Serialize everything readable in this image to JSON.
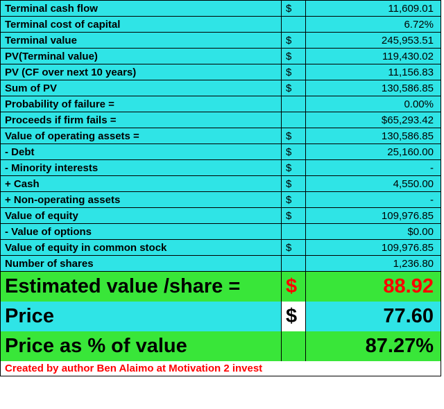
{
  "colors": {
    "cyan": "#2fe4e6",
    "green": "#39e639",
    "white": "#ffffff",
    "red": "#ff0000",
    "black": "#000000"
  },
  "rows": [
    {
      "label": "Terminal cash flow",
      "cur": "$",
      "val": "11,609.01",
      "bg": "cyan"
    },
    {
      "label": "Terminal cost of capital",
      "cur": "",
      "val": "6.72%",
      "bg": "cyan"
    },
    {
      "label": "Terminal value",
      "cur": "$",
      "val": "245,953.51",
      "bg": "cyan"
    },
    {
      "label": "PV(Terminal value)",
      "cur": "$",
      "val": "119,430.02",
      "bg": "cyan"
    },
    {
      "label": "PV (CF over next 10 years)",
      "cur": "$",
      "val": "11,156.83",
      "bg": "cyan"
    },
    {
      "label": "Sum of PV",
      "cur": "$",
      "val": "130,586.85",
      "bg": "cyan"
    },
    {
      "label": "Probability of failure =",
      "cur": "",
      "val": "0.00%",
      "bg": "cyan"
    },
    {
      "label": "Proceeds if firm fails =",
      "cur": "",
      "val": "$65,293.42",
      "bg": "cyan"
    },
    {
      "label": "Value of operating assets =",
      "cur": "$",
      "val": "130,586.85",
      "bg": "cyan"
    },
    {
      "label": " - Debt",
      "cur": "$",
      "val": "25,160.00",
      "bg": "cyan"
    },
    {
      "label": " - Minority interests",
      "cur": "$",
      "val": "-",
      "bg": "cyan"
    },
    {
      "label": " +  Cash",
      "cur": "$",
      "val": "4,550.00",
      "bg": "cyan"
    },
    {
      "label": " + Non-operating assets",
      "cur": "$",
      "val": "-",
      "bg": "cyan"
    },
    {
      "label": "Value of equity",
      "cur": "$",
      "val": "109,976.85",
      "bg": "cyan"
    },
    {
      "label": " - Value of options",
      "cur": "",
      "val": "$0.00",
      "bg": "cyan"
    },
    {
      "label": "Value of equity in common stock",
      "cur": "$",
      "val": "109,976.85",
      "bg": "cyan"
    },
    {
      "label": "Number of shares",
      "cur": "",
      "val": "1,236.80",
      "bg": "cyan"
    }
  ],
  "bigrows": [
    {
      "label": "Estimated value /share =",
      "cur": "$",
      "val": "88.92",
      "bg": "green",
      "textcolor": "red"
    },
    {
      "label": "Price",
      "cur": "$",
      "val": "77.60",
      "bg": "cyan",
      "curbg": "white",
      "textcolor": "black"
    },
    {
      "label": "Price as % of value",
      "cur": "",
      "val": "87.27%",
      "bg": "green",
      "textcolor": "black"
    }
  ],
  "footer": {
    "text": "Created by author Ben Alaimo at Motivation 2 invest",
    "bg": "white",
    "color": "red"
  }
}
